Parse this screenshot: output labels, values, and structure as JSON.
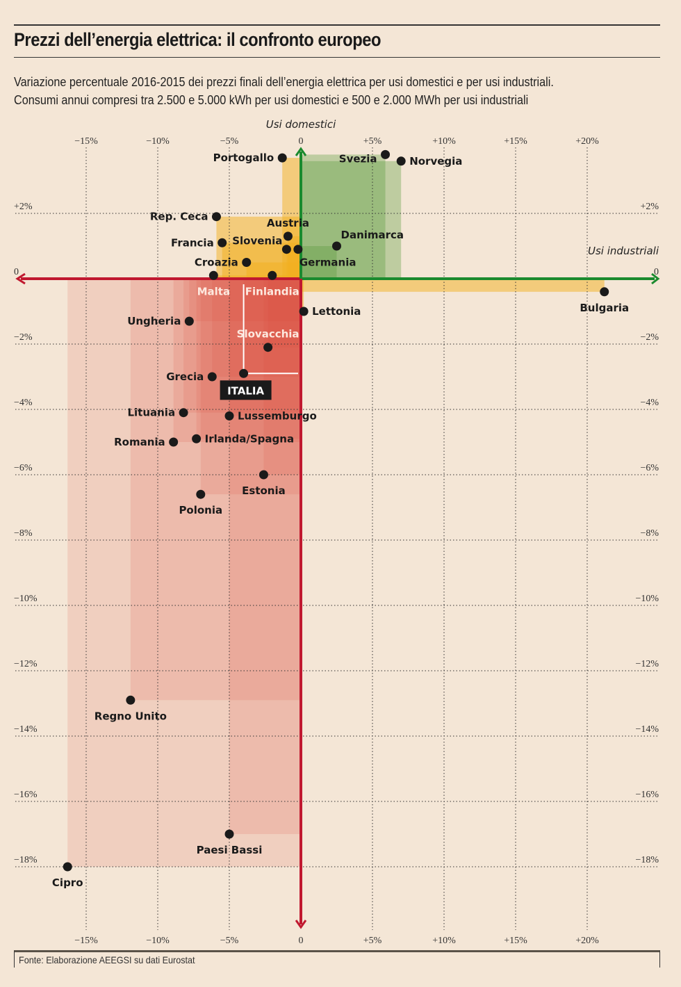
{
  "header": {
    "title": "Prezzi dell’energia elettrica: il confronto europeo",
    "subtitle_line1": "Variazione percentuale 2016-2015 dei prezzi finali dell’energia elettrica per usi domestici e per usi industriali.",
    "subtitle_line2": "Consumi annui compresi tra 2.500 e 5.000 kWh per usi domestici e 500 e 2.000 MWh per usi industriali"
  },
  "footer": {
    "source": "Fonte: Elaborazione AEEGSI su dati Eurostat"
  },
  "colors": {
    "background": "#f4e6d6",
    "positive_both": "#5a9a3c",
    "mixed": "#f2b020",
    "negative_both": "#d9453a",
    "axis_x_pos": "#1a8a2e",
    "axis_neg": "#c0182f",
    "highlight_box": "#1a1a1a"
  },
  "chart_data": {
    "type": "scatter",
    "title": "Prezzi dell’energia elettrica: il confronto europeo",
    "xlabel": "Usi domestici",
    "ylabel": "Usi industriali",
    "x_axis_title": "Usi domestici",
    "y_axis_title": "Usi industriali",
    "xlim": [
      -17,
      24
    ],
    "ylim": [
      -19.6,
      4.2
    ],
    "x_ticks": [
      -15,
      -10,
      -5,
      0,
      5,
      10,
      15,
      20
    ],
    "x_tick_labels": [
      "−15%",
      "−10%",
      "−5%",
      "0",
      "+5%",
      "+10%",
      "+15%",
      "+20%"
    ],
    "y_ticks": [
      2,
      0,
      -2,
      -4,
      -6,
      -8,
      -10,
      -12,
      -14,
      -16,
      -18
    ],
    "y_tick_labels": [
      "+2%",
      "0",
      "−2%",
      "−4%",
      "−6%",
      "−8%",
      "−10%",
      "−12%",
      "−14%",
      "−16%",
      "−18%"
    ],
    "grid": true,
    "highlight": "ITALIA",
    "points": [
      {
        "name": "Portogallo",
        "x": -1.3,
        "y": 3.7,
        "label_pos": "left"
      },
      {
        "name": "Svezia",
        "x": 5.9,
        "y": 3.8,
        "label_pos": "left-low"
      },
      {
        "name": "Norvegia",
        "x": 7.0,
        "y": 3.6,
        "label_pos": "right"
      },
      {
        "name": "Rep. Ceca",
        "x": -5.9,
        "y": 1.9,
        "label_pos": "left"
      },
      {
        "name": "Austria",
        "x": -0.9,
        "y": 1.3,
        "label_pos": "above"
      },
      {
        "name": "Francia",
        "x": -5.5,
        "y": 1.1,
        "label_pos": "left"
      },
      {
        "name": "Slovenia",
        "x": -1.0,
        "y": 0.9,
        "label_pos": "left-up"
      },
      {
        "name": "Germania",
        "x": -0.2,
        "y": 0.9,
        "label_pos": "below-right"
      },
      {
        "name": "Danimarca",
        "x": 2.5,
        "y": 1.0,
        "label_pos": "above-right"
      },
      {
        "name": "Croazia",
        "x": -3.8,
        "y": 0.5,
        "label_pos": "left"
      },
      {
        "name": "Malta",
        "x": -6.1,
        "y": 0.1,
        "label_pos": "below",
        "white": true
      },
      {
        "name": "Finlandia",
        "x": -2.0,
        "y": 0.1,
        "label_pos": "below",
        "white": true
      },
      {
        "name": "Bulgaria",
        "x": 21.2,
        "y": -0.4,
        "label_pos": "below"
      },
      {
        "name": "Lettonia",
        "x": 0.2,
        "y": -1.0,
        "label_pos": "right"
      },
      {
        "name": "Ungheria",
        "x": -7.8,
        "y": -1.3,
        "label_pos": "left"
      },
      {
        "name": "Slovacchia",
        "x": -2.3,
        "y": -2.1,
        "label_pos": "above",
        "white": true
      },
      {
        "name": "Grecia",
        "x": -6.2,
        "y": -3.0,
        "label_pos": "left"
      },
      {
        "name": "ITALIA",
        "x": -4.0,
        "y": -2.9,
        "label_pos": "box"
      },
      {
        "name": "Lituania",
        "x": -8.2,
        "y": -4.1,
        "label_pos": "left"
      },
      {
        "name": "Lussemburgo",
        "x": -5.0,
        "y": -4.2,
        "label_pos": "right"
      },
      {
        "name": "Irlanda/Spagna",
        "x": -7.3,
        "y": -4.9,
        "label_pos": "right"
      },
      {
        "name": "Romania",
        "x": -8.9,
        "y": -5.0,
        "label_pos": "left"
      },
      {
        "name": "Estonia",
        "x": -2.6,
        "y": -6.0,
        "label_pos": "below"
      },
      {
        "name": "Polonia",
        "x": -7.0,
        "y": -6.6,
        "label_pos": "below"
      },
      {
        "name": "Regno Unito",
        "x": -11.9,
        "y": -12.9,
        "label_pos": "below"
      },
      {
        "name": "Paesi Bassi",
        "x": -5.0,
        "y": -17.0,
        "label_pos": "below"
      },
      {
        "name": "Cipro",
        "x": -16.3,
        "y": -18.0,
        "label_pos": "below"
      }
    ]
  }
}
